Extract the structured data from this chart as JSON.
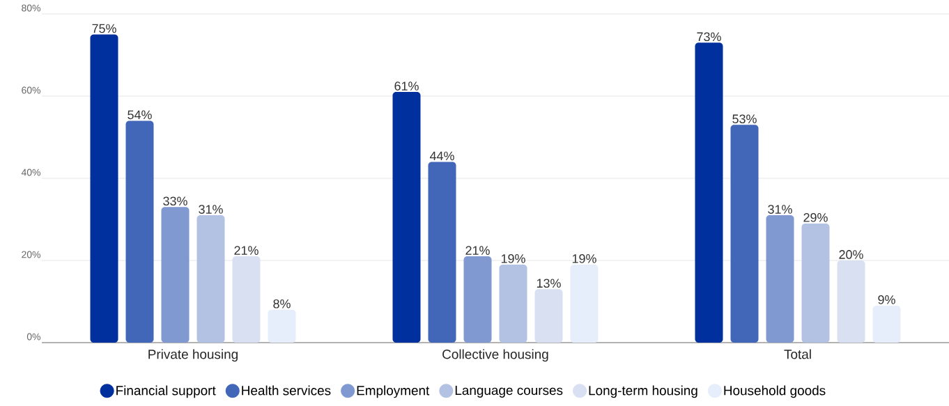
{
  "chart_data": {
    "type": "bar",
    "categories": [
      "Private housing",
      "Collective housing",
      "Total"
    ],
    "series": [
      {
        "name": "Financial support",
        "color": "#00309e",
        "values": [
          75,
          61,
          73
        ],
        "value_labels": [
          "75%",
          "61%",
          "73%"
        ]
      },
      {
        "name": "Health services",
        "color": "#4266b8",
        "values": [
          54,
          44,
          53
        ],
        "value_labels": [
          "54%",
          "44%",
          "53%"
        ]
      },
      {
        "name": "Employment",
        "color": "#8099d0",
        "values": [
          33,
          21,
          31
        ],
        "value_labels": [
          "33%",
          "21%",
          "31%"
        ]
      },
      {
        "name": "Language courses",
        "color": "#b3c2e3",
        "values": [
          31,
          19,
          29
        ],
        "value_labels": [
          "31%",
          "19%",
          "29%"
        ]
      },
      {
        "name": "Long-term housing",
        "color": "#d9e0f1",
        "values": [
          21,
          13,
          20
        ],
        "value_labels": [
          "21%",
          "13%",
          "20%"
        ]
      },
      {
        "name": "Household goods",
        "color": "#e6eefb",
        "values": [
          8,
          19,
          9
        ],
        "value_labels": [
          "8%",
          "19%",
          "9%"
        ]
      }
    ],
    "ylim": [
      0,
      80
    ],
    "yticks": [
      {
        "value": 0,
        "label": "0%"
      },
      {
        "value": 20,
        "label": "20%"
      },
      {
        "value": 40,
        "label": "40%"
      },
      {
        "value": 60,
        "label": "60%"
      },
      {
        "value": 80,
        "label": "80%"
      }
    ],
    "grid": "y",
    "legend": "bottom"
  }
}
